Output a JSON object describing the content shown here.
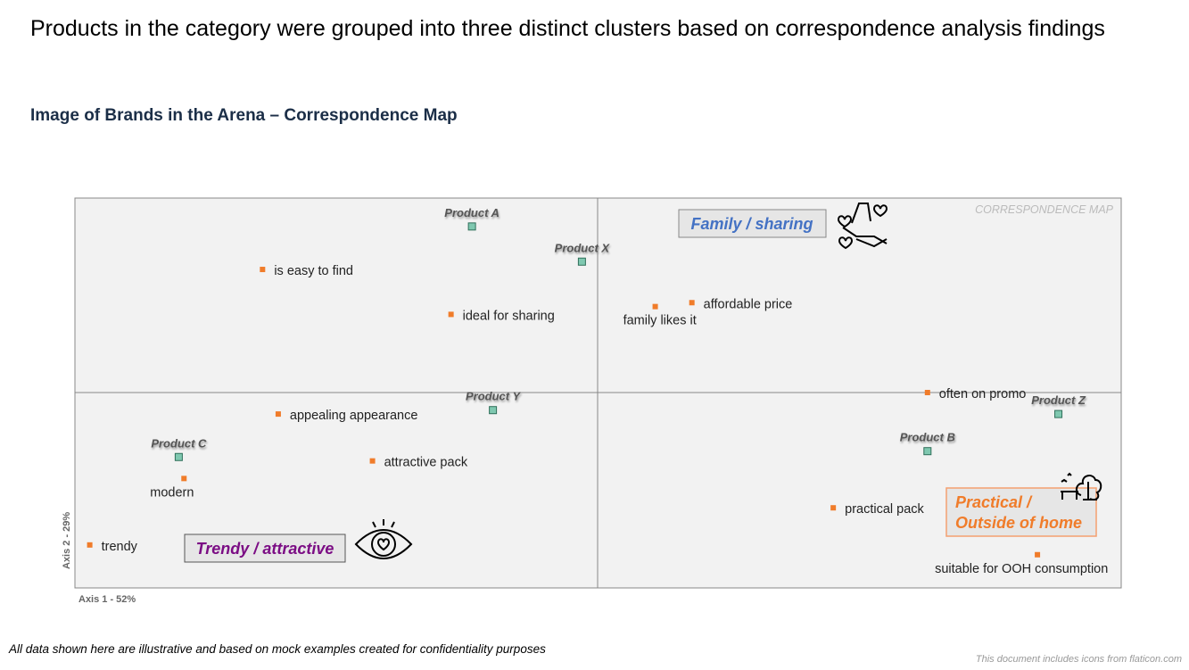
{
  "title": "Products in the category were grouped into three distinct clusters based on correspondence analysis findings",
  "subtitle": "Image of Brands in the Arena – Correspondence Map",
  "footnote": "All data shown here are illustrative and based on mock examples created for confidentiality purposes",
  "credit": "This document includes icons from flaticon.com",
  "chart_data": {
    "type": "scatter",
    "title": "CORRESPONDENCE MAP",
    "xlabel": "Axis 1 - 52%",
    "ylabel": "Axis 2 - 29%",
    "xlim": [
      -1,
      1
    ],
    "ylim": [
      -1,
      1
    ],
    "colors": {
      "product": "#7fc8b0",
      "attribute": "#f07c2a"
    },
    "products": [
      {
        "label": "Product A",
        "x": -0.24,
        "y": 0.85
      },
      {
        "label": "Product X",
        "x": -0.03,
        "y": 0.67
      },
      {
        "label": "Product Y",
        "x": -0.2,
        "y": -0.09
      },
      {
        "label": "Product C",
        "x": -0.8,
        "y": -0.33
      },
      {
        "label": "Product B",
        "x": 0.63,
        "y": -0.3
      },
      {
        "label": "Product Z",
        "x": 0.88,
        "y": -0.11
      }
    ],
    "attributes": [
      {
        "label": "is easy to find",
        "x": -0.64,
        "y": 0.63,
        "pos": "right"
      },
      {
        "label": "ideal for sharing",
        "x": -0.28,
        "y": 0.4,
        "pos": "right"
      },
      {
        "label": "family likes it",
        "x": 0.11,
        "y": 0.44,
        "pos": "below"
      },
      {
        "label": "affordable price",
        "x": 0.18,
        "y": 0.46,
        "pos": "right"
      },
      {
        "label": "often on promo",
        "x": 0.63,
        "y": 0.0,
        "pos": "right"
      },
      {
        "label": "appealing appearance",
        "x": -0.61,
        "y": -0.11,
        "pos": "right"
      },
      {
        "label": "attractive pack",
        "x": -0.43,
        "y": -0.35,
        "pos": "right"
      },
      {
        "label": "modern",
        "x": -0.79,
        "y": -0.44,
        "pos": "below"
      },
      {
        "label": "trendy",
        "x": -0.97,
        "y": -0.78,
        "pos": "right"
      },
      {
        "label": "practical pack",
        "x": 0.45,
        "y": -0.59,
        "pos": "right"
      },
      {
        "label": "suitable for OOH consumption",
        "x": 0.84,
        "y": -0.83,
        "pos": "below"
      }
    ],
    "clusters": [
      {
        "label": "Family /  sharing",
        "color": "#4472c4",
        "icon": "hands-hearts-icon"
      },
      {
        "label": "Trendy / attractive",
        "color": "#7b0c84",
        "icon": "eye-heart-icon"
      },
      {
        "label": "Practical  /",
        "label2": "Outside of home",
        "color": "#f07c2a",
        "icon": "tree-bench-icon"
      }
    ]
  }
}
